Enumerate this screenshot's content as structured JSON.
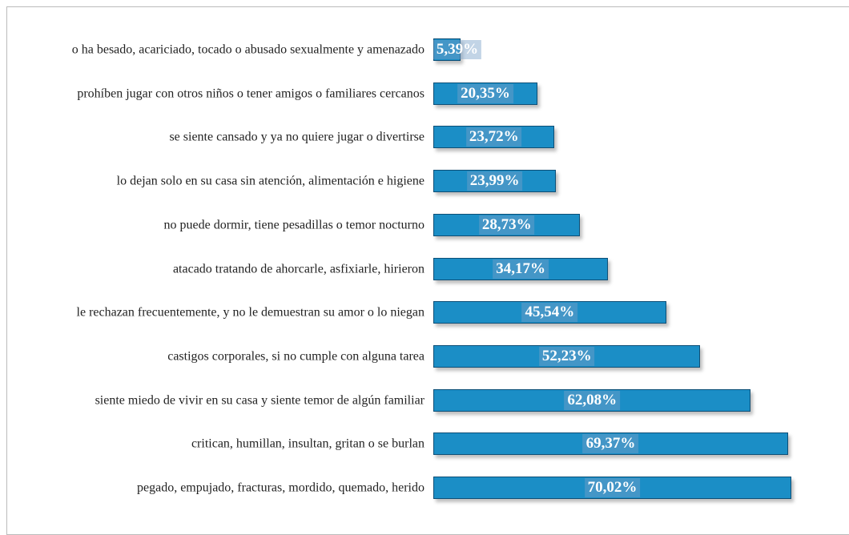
{
  "chart_data": {
    "type": "bar",
    "orientation": "horizontal",
    "color": "#1b8ec6",
    "categories": [
      "o ha besado, acariciado, tocado o abusado sexualmente y amenazado",
      "prohíben jugar con otros niños o tener amigos o familiares cercanos",
      "se siente cansado y ya no quiere jugar o divertirse",
      "lo dejan solo en su casa sin atención, alimentación e higiene",
      "no puede dormir, tiene pesadillas o temor nocturno",
      "atacado tratando de ahorcarle, asfixiarle, hirieron",
      "le rechazan frecuentemente, y no le demuestran su amor o lo niegan",
      "castigos corporales, si no cumple con alguna tarea",
      "siente miedo de vivir en su casa y siente temor de algún familiar",
      "critican, humillan, insultan, gritan o se burlan",
      "pegado, empujado, fracturas, mordido, quemado, herido"
    ],
    "values": [
      5.39,
      20.35,
      23.72,
      23.99,
      28.73,
      34.17,
      45.54,
      52.23,
      62.08,
      69.37,
      70.02
    ],
    "value_labels": [
      "5,39%",
      "20,35%",
      "23,72%",
      "23,99%",
      "28,73%",
      "34,17%",
      "45,54%",
      "52,23%",
      "62,08%",
      "69,37%",
      "70,02%"
    ]
  }
}
